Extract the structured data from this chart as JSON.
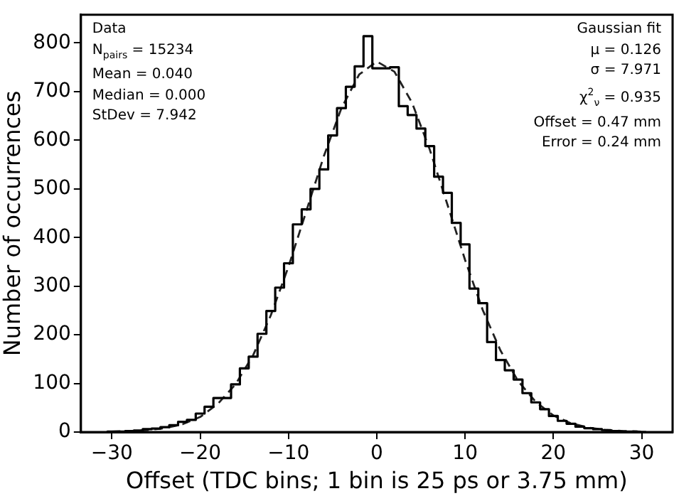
{
  "chart_data": {
    "type": "histogram",
    "xlabel": "Offset (TDC bins; 1 bin is 25 ps or 3.75 mm)",
    "ylabel": "Number of occurrences",
    "bins": [
      -30.5,
      -29.5,
      -28.5,
      -27.5,
      -26.5,
      -25.5,
      -24.5,
      -23.5,
      -22.5,
      -21.5,
      -20.5,
      -19.5,
      -18.5,
      -17.5,
      -16.5,
      -15.5,
      -14.5,
      -13.5,
      -12.5,
      -11.5,
      -10.5,
      -9.5,
      -8.5,
      -7.5,
      -6.5,
      -5.5,
      -4.5,
      -3.5,
      -2.5,
      -1.5,
      -0.5,
      0.5,
      1.5,
      2.5,
      3.5,
      4.5,
      5.5,
      6.5,
      7.5,
      8.5,
      9.5,
      10.5,
      11.5,
      12.5,
      13.5,
      14.5,
      15.5,
      16.5,
      17.5,
      18.5,
      19.5,
      20.5,
      21.5,
      22.5,
      23.5,
      24.5,
      25.5,
      26.5,
      27.5,
      28.5,
      29.5,
      30.5
    ],
    "series": [
      {
        "type": "histogram",
        "color": "#000000",
        "values": [
          1,
          1,
          2,
          3,
          6,
          7,
          10,
          14,
          21,
          25,
          38,
          52,
          70,
          70,
          98,
          131,
          155,
          202,
          249,
          297,
          347,
          427,
          458,
          500,
          540,
          610,
          666,
          710,
          752,
          814,
          748,
          748,
          750,
          670,
          652,
          624,
          588,
          525,
          492,
          430,
          386,
          295,
          265,
          185,
          148,
          127,
          108,
          80,
          61,
          47,
          33,
          23,
          17,
          11,
          8,
          6,
          4,
          2,
          1,
          1,
          0
        ]
      },
      {
        "type": "line",
        "color": "#222222",
        "line_style": "dashed",
        "marker": "none",
        "x": [
          -30,
          -28,
          -26,
          -24,
          -22,
          -20,
          -18,
          -16,
          -14,
          -12,
          -10,
          -8,
          -6,
          -4,
          -2,
          0,
          2,
          4,
          6,
          8,
          10,
          12,
          14,
          16,
          18,
          20,
          22,
          24,
          26,
          28,
          30
        ],
        "values": [
          1,
          2,
          4,
          8,
          16,
          31,
          58,
          98,
          158,
          240,
          340,
          453,
          567,
          666,
          735,
          762,
          741,
          677,
          581,
          468,
          354,
          251,
          168,
          105,
          62,
          34,
          18,
          9,
          4,
          2,
          1
        ]
      }
    ],
    "xlim": [
      -33.5,
      33.5
    ],
    "xticks": [
      {
        "value": -30,
        "label": "−30"
      },
      {
        "value": -20,
        "label": "−20"
      },
      {
        "value": -10,
        "label": "−10"
      },
      0,
      10,
      20,
      30
    ],
    "ylim": [
      0,
      858
    ],
    "yticks": [
      0,
      100,
      200,
      300,
      400,
      500,
      600,
      700,
      800
    ],
    "grid": false,
    "legend": false,
    "annotations": [
      "Data\nN$_{pairs}$ = 15234\nMean = 0.040\nMedian = 0.000\nStDev = 7.942",
      "Gaussian fit\nμ = 0.126\nσ = 7.971\nχ$^{2}$$_{ν}$ = 0.935\nOffset = 0.47 mm\nError = 0.24 mm"
    ]
  }
}
